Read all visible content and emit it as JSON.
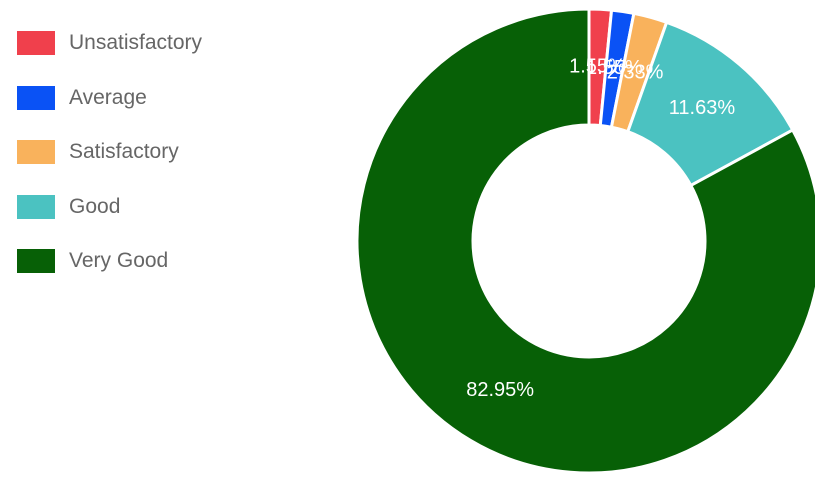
{
  "chart_data": {
    "type": "pie",
    "variant": "doughnut",
    "legend_position": "left",
    "categories": [
      "Unsatisfactory",
      "Average",
      "Satisfactory",
      "Good",
      "Very Good"
    ],
    "values": [
      1.55,
      1.55,
      2.33,
      11.63,
      82.95
    ],
    "labels": [
      "1.55%",
      "1.55%",
      "2.33%",
      "11.63%",
      "82.95%"
    ],
    "colors": [
      "#f0404c",
      "#0a52f5",
      "#f9b25c",
      "#4bc2c1",
      "#076006"
    ]
  }
}
